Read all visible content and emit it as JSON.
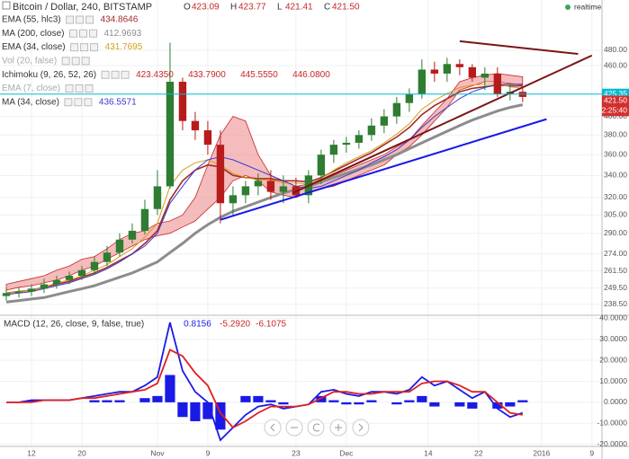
{
  "chart_data": [
    {
      "type": "candlestick",
      "title": "Bitcoin / Dollar, 240, BITSTAMP",
      "status": "realtime",
      "ohlc": {
        "names": [
          "O",
          "H",
          "L",
          "C"
        ],
        "values": [
          423.09,
          423.77,
          421.41,
          421.5
        ],
        "value_labels": [
          "423.09",
          "423.77",
          "421.41",
          "421.50"
        ]
      },
      "log_scale": true,
      "grid": true,
      "up_color": "#2e7d32",
      "down_color": "#b71c1c",
      "xlim": [
        0,
        95.6
      ],
      "xticks": [
        {
          "value": 5,
          "label": "12"
        },
        {
          "value": 13,
          "label": "20"
        },
        {
          "value": 25,
          "label": "Nov"
        },
        {
          "value": 33,
          "label": "9"
        },
        {
          "value": 47,
          "label": "23"
        },
        {
          "value": 55,
          "label": "Dec"
        },
        {
          "value": 68,
          "label": "14"
        },
        {
          "value": 76,
          "label": "22"
        },
        {
          "value": 86,
          "label": "2016"
        },
        {
          "value": 94,
          "label": "9"
        }
      ],
      "ylim": [
        232,
        551
      ],
      "yticks": [
        {
          "value": 480,
          "label": "480.00"
        },
        {
          "value": 460,
          "label": "460.00"
        },
        {
          "value": 400,
          "label": "400.00"
        },
        {
          "value": 380,
          "label": "380.00"
        },
        {
          "value": 360,
          "label": "360.00"
        },
        {
          "value": 340,
          "label": "340.00"
        },
        {
          "value": 320,
          "label": "320.00"
        },
        {
          "value": 305,
          "label": "305.00"
        },
        {
          "value": 290,
          "label": "290.00"
        },
        {
          "value": 274,
          "label": "274.00"
        },
        {
          "value": 261.5,
          "label": "261.50"
        },
        {
          "value": 249.5,
          "label": "249.50"
        },
        {
          "value": 238.5,
          "label": "238.50"
        }
      ],
      "x": [
        1,
        3,
        5,
        7,
        9,
        11,
        13,
        15,
        17,
        19,
        21,
        23,
        25,
        27,
        29,
        31,
        33,
        35,
        37,
        39,
        41,
        43,
        45,
        47,
        49,
        51,
        53,
        55,
        57,
        59,
        61,
        63,
        65,
        67,
        69,
        71,
        73,
        75,
        77,
        79,
        81,
        83
      ],
      "open": [
        244,
        246,
        247,
        249,
        252,
        255,
        258,
        262,
        268,
        275,
        285,
        292,
        310,
        330,
        440,
        395,
        385,
        370,
        315,
        322,
        330,
        335,
        325,
        330,
        322,
        340,
        360,
        370,
        372,
        380,
        390,
        400,
        415,
        425,
        455,
        450,
        462,
        458,
        445,
        450,
        425,
        428
      ],
      "high": [
        249,
        250,
        252,
        256,
        258,
        261,
        265,
        272,
        280,
        290,
        298,
        318,
        345,
        490,
        445,
        405,
        395,
        385,
        330,
        335,
        342,
        345,
        340,
        338,
        345,
        365,
        375,
        378,
        385,
        398,
        408,
        422,
        432,
        468,
        465,
        470,
        468,
        462,
        458,
        458,
        438,
        432
      ],
      "low": [
        241,
        243,
        244,
        246,
        249,
        252,
        255,
        259,
        265,
        272,
        282,
        289,
        305,
        328,
        385,
        375,
        360,
        298,
        305,
        315,
        322,
        318,
        315,
        320,
        315,
        332,
        352,
        362,
        366,
        374,
        382,
        392,
        405,
        420,
        440,
        440,
        448,
        440,
        430,
        422,
        418,
        416
      ],
      "close": [
        246,
        247,
        249,
        252,
        255,
        258,
        262,
        268,
        275,
        285,
        292,
        310,
        330,
        440,
        395,
        385,
        370,
        315,
        322,
        330,
        335,
        325,
        330,
        322,
        340,
        360,
        370,
        372,
        380,
        390,
        400,
        415,
        425,
        455,
        450,
        462,
        458,
        445,
        450,
        425,
        428,
        422
      ],
      "series": [
        {
          "name": "EMA (55, hlc3)",
          "color": "#a52a2a",
          "width": 1.6,
          "values": [
            246,
            247,
            248,
            250,
            252,
            254,
            257,
            260,
            264,
            269,
            274,
            282,
            292,
            318,
            335,
            345,
            350,
            348,
            340,
            338,
            337,
            337,
            335,
            335,
            334,
            338,
            344,
            350,
            356,
            362,
            370,
            378,
            388,
            402,
            412,
            420,
            428,
            432,
            434,
            436,
            435,
            435
          ],
          "last": [
            434.8646
          ]
        },
        {
          "name": "MA (200, close)",
          "color": "#8c8c8c",
          "width": 3,
          "values": [
            240,
            241,
            242,
            243,
            245,
            247,
            249,
            251,
            254,
            257,
            260,
            264,
            268,
            275,
            282,
            290,
            297,
            303,
            308,
            312,
            316,
            320,
            324,
            327,
            330,
            334,
            338,
            342,
            346,
            350,
            355,
            360,
            366,
            372,
            378,
            384,
            390,
            396,
            401,
            406,
            410,
            413
          ],
          "last": [
            412.9693
          ]
        },
        {
          "name": "EMA (34, close)",
          "color": "#d4a017",
          "width": 1,
          "values": [
            246,
            247,
            248,
            250,
            253,
            255,
            258,
            262,
            266,
            272,
            278,
            287,
            298,
            330,
            345,
            352,
            355,
            350,
            342,
            338,
            336,
            336,
            333,
            333,
            332,
            337,
            345,
            352,
            358,
            364,
            372,
            381,
            392,
            408,
            418,
            426,
            433,
            436,
            437,
            438,
            434,
            432
          ],
          "last": [
            431.7695
          ]
        },
        {
          "name": "Vol (20, false)",
          "color": "#b0b0b0"
        },
        {
          "name": "Ichimoku (9, 26, 52, 26)",
          "color": "#c62828",
          "cloud_color": "#f0a0a0",
          "last": [
            423.435,
            433.79,
            445.555,
            446.08
          ],
          "last_labels": [
            "423.4350",
            "433.7900",
            "445.5550",
            "446.0800"
          ],
          "upper": [
            252,
            254,
            256,
            258,
            262,
            265,
            270,
            272,
            278,
            285,
            290,
            292,
            298,
            300,
            305,
            320,
            350,
            380,
            400,
            395,
            360,
            340,
            335,
            330,
            332,
            335,
            340,
            345,
            350,
            355,
            360,
            368,
            375,
            390,
            405,
            420,
            440,
            445,
            448,
            450,
            448,
            446
          ],
          "lower": [
            248,
            250,
            251,
            253,
            255,
            258,
            262,
            265,
            270,
            275,
            280,
            285,
            288,
            290,
            295,
            300,
            310,
            320,
            335,
            340,
            335,
            325,
            322,
            320,
            325,
            328,
            330,
            335,
            340,
            345,
            350,
            360,
            368,
            380,
            395,
            410,
            430,
            435,
            440,
            440,
            438,
            436
          ]
        },
        {
          "name": "EMA (7, close)",
          "color": "#b0b0b0"
        },
        {
          "name": "MA (34, close)",
          "color": "#3a3acc",
          "width": 1,
          "values": [
            245,
            246,
            247,
            249,
            251,
            253,
            256,
            259,
            263,
            268,
            274,
            280,
            290,
            315,
            330,
            345,
            355,
            358,
            355,
            350,
            345,
            340,
            335,
            330,
            328,
            330,
            335,
            340,
            345,
            352,
            358,
            365,
            375,
            388,
            400,
            410,
            420,
            428,
            433,
            437,
            437,
            437
          ],
          "last": [
            436.5571
          ]
        }
      ],
      "trendlines": [
        {
          "color": "#1a1ae6",
          "x": [
            35,
            86.8
          ],
          "y": [
            301,
            397
          ]
        },
        {
          "color": "#7b1414",
          "x": [
            46.5,
            94
          ],
          "y": [
            324,
            473
          ]
        },
        {
          "color": "#7b1414",
          "x": [
            73,
            91.8
          ],
          "y": [
            492,
            475
          ]
        }
      ],
      "price_line": {
        "value": 425.35,
        "color": "#00bcd4"
      },
      "last_price": {
        "value": 421.5,
        "label": "421.50",
        "countdown": "2:25:40",
        "color": "#d32f2f"
      }
    },
    {
      "type": "macd",
      "title": "MACD (12, 26, close, 9, false, true)",
      "values": [
        0.8156,
        -5.292,
        -6.1075
      ],
      "value_labels": [
        "0.8156",
        "-5.2920",
        "-6.1075"
      ],
      "ylim": [
        -21,
        41
      ],
      "grid": true,
      "yticks": [
        {
          "value": 40,
          "label": "40.0000"
        },
        {
          "value": 30,
          "label": "30.0000"
        },
        {
          "value": 20,
          "label": "20.0000"
        },
        {
          "value": 10,
          "label": "10.0000"
        },
        {
          "value": 0,
          "label": "0.0000"
        },
        {
          "value": -10,
          "label": "-10.0000"
        },
        {
          "value": -20,
          "label": "-20.0000"
        }
      ],
      "series": [
        {
          "color": "#1a1ae6",
          "values": [
            0,
            0,
            1,
            1,
            1,
            1,
            2,
            3,
            4,
            5,
            5,
            8,
            12,
            38,
            15,
            5,
            0,
            -18,
            -12,
            -6,
            -2,
            -1,
            -3,
            -2,
            -1,
            5,
            6,
            4,
            3,
            5,
            5,
            4,
            6,
            12,
            8,
            10,
            6,
            2,
            5,
            -3,
            -7,
            -5
          ]
        },
        {
          "color": "#e02020",
          "values": [
            0,
            0,
            0,
            1,
            1,
            1,
            2,
            2,
            3,
            4,
            5,
            6,
            9,
            25,
            22,
            14,
            8,
            -5,
            -12,
            -9,
            -5,
            -2,
            -2,
            -2,
            -1,
            2,
            5,
            5,
            4,
            4,
            5,
            5,
            5,
            9,
            10,
            10,
            8,
            5,
            5,
            0,
            -5,
            -6
          ]
        }
      ],
      "histogram": {
        "color": "#1a1ae6",
        "values": [
          0,
          0,
          1,
          0,
          0,
          0,
          0,
          1,
          1,
          1,
          0,
          2,
          3,
          13,
          -7,
          -9,
          -8,
          -13,
          0,
          3,
          3,
          1,
          -1,
          0,
          0,
          3,
          1,
          -1,
          -1,
          1,
          0,
          -1,
          1,
          3,
          -2,
          0,
          -2,
          -3,
          0,
          -3,
          -2,
          1
        ]
      }
    }
  ]
}
